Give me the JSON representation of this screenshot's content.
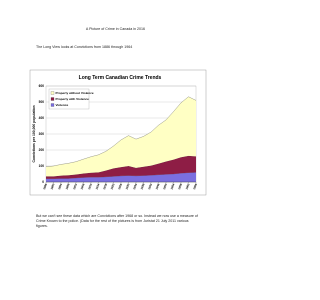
{
  "title": "A Picture of Crime in Canada in 2016",
  "subtitle": "The Long View looks at Convictions from 1886 through 1964",
  "footer": "But we can't see these data which are Convictions after 1968 or so.  Instead we now use a measure of Crime Known to the police. (Data for the rest of the pictures is from Juristat 21 July 2011 various figures.",
  "chart_data": {
    "type": "stacked_area",
    "title": "Long Term Canadian Crime Trends",
    "y_label": "Convictions per 100,000 population",
    "x": [
      1886,
      1890,
      1894,
      1898,
      1902,
      1906,
      1910,
      1914,
      1918,
      1922,
      1926,
      1930,
      1934,
      1938,
      1942,
      1946,
      1950,
      1954,
      1958,
      1962,
      1966
    ],
    "xlim": [
      1886,
      1966
    ],
    "xticks": [
      1886,
      1890,
      1894,
      1898,
      1902,
      1906,
      1910,
      1914,
      1918,
      1922,
      1926,
      1930,
      1934,
      1938,
      1942,
      1946,
      1950,
      1954,
      1958,
      1962,
      1966
    ],
    "ylim": [
      0,
      600
    ],
    "yticks": [
      0,
      100,
      200,
      300,
      400,
      500,
      600
    ],
    "grid": true,
    "legend": "top-left",
    "series": [
      {
        "name": "Violence",
        "color": "#7b6fe0",
        "values": [
          20,
          20,
          22,
          22,
          25,
          28,
          30,
          30,
          32,
          35,
          38,
          40,
          38,
          40,
          42,
          45,
          48,
          50,
          55,
          58,
          60
        ]
      },
      {
        "name": "Property with Violence",
        "color": "#8e1d45",
        "values": [
          15,
          15,
          18,
          20,
          22,
          25,
          28,
          30,
          40,
          50,
          55,
          60,
          50,
          55,
          60,
          70,
          80,
          90,
          100,
          105,
          100
        ]
      },
      {
        "name": "Property without Violence",
        "color": "#ffffc4",
        "values": [
          60,
          65,
          70,
          75,
          80,
          90,
          100,
          110,
          120,
          140,
          170,
          190,
          180,
          190,
          210,
          240,
          260,
          300,
          340,
          370,
          350
        ]
      }
    ]
  }
}
